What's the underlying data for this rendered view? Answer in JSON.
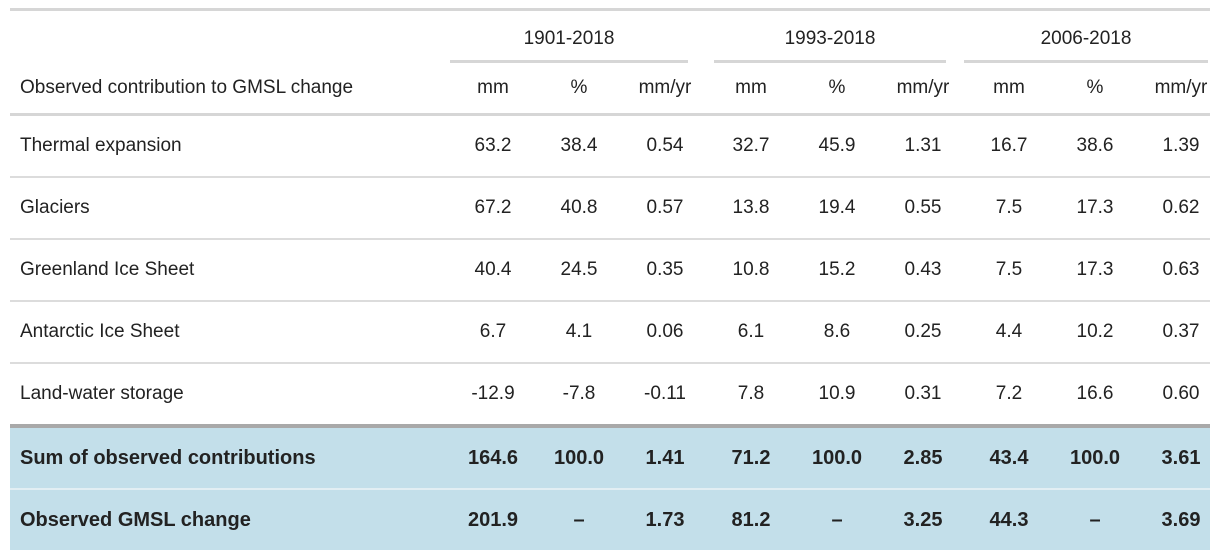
{
  "table": {
    "periods": [
      "1901-2018",
      "1993-2018",
      "2006-2018"
    ],
    "label_header": "Observed contribution to GMSL change",
    "units": [
      "mm",
      "%",
      "mm/yr"
    ],
    "rows": [
      {
        "label": "Thermal expansion",
        "values": [
          "63.2",
          "38.4",
          "0.54",
          "32.7",
          "45.9",
          "1.31",
          "16.7",
          "38.6",
          "1.39"
        ]
      },
      {
        "label": "Glaciers",
        "values": [
          "67.2",
          "40.8",
          "0.57",
          "13.8",
          "19.4",
          "0.55",
          "7.5",
          "17.3",
          "0.62"
        ]
      },
      {
        "label": "Greenland Ice Sheet",
        "values": [
          "40.4",
          "24.5",
          "0.35",
          "10.8",
          "15.2",
          "0.43",
          "7.5",
          "17.3",
          "0.63"
        ]
      },
      {
        "label": "Antarctic Ice Sheet",
        "values": [
          "6.7",
          "4.1",
          "0.06",
          "6.1",
          "8.6",
          "0.25",
          "4.4",
          "10.2",
          "0.37"
        ]
      },
      {
        "label": "Land-water storage",
        "values": [
          "-12.9",
          "-7.8",
          "-0.11",
          "7.8",
          "10.9",
          "0.31",
          "7.2",
          "16.6",
          "0.60"
        ]
      }
    ],
    "summary_rows": [
      {
        "label": "Sum of observed contributions",
        "values": [
          "164.6",
          "100.0",
          "1.41",
          "71.2",
          "100.0",
          "2.85",
          "43.4",
          "100.0",
          "3.61"
        ]
      },
      {
        "label": "Observed GMSL change",
        "values": [
          "201.9",
          "–",
          "1.73",
          "81.2",
          "–",
          "3.25",
          "44.3",
          "–",
          "3.69"
        ]
      }
    ]
  }
}
